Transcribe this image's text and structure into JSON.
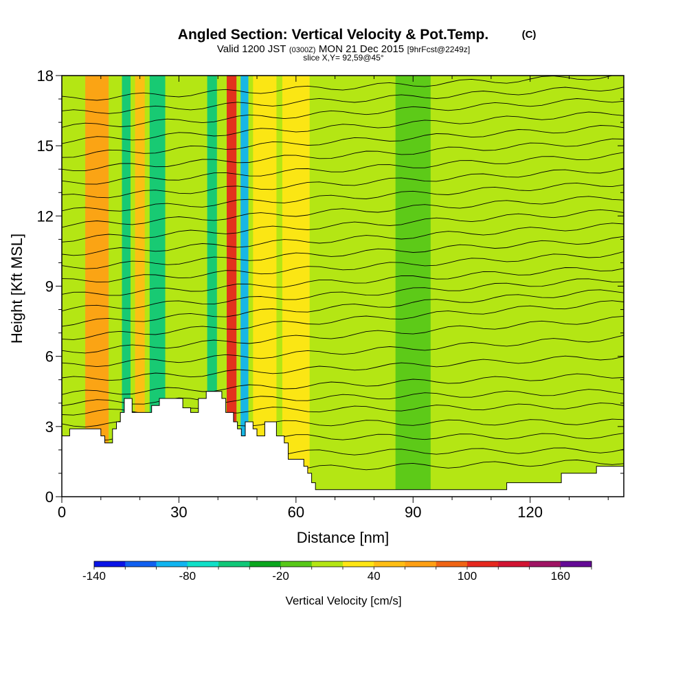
{
  "chart_data": {
    "type": "heatmap",
    "title": "Angled Section: Vertical Velocity & Pot.Temp.",
    "title_unit": "(C)",
    "subtitle": {
      "valid": "Valid 1200 JST",
      "zulu": "(0300Z)",
      "date": "MON 21 Dec 2015",
      "forecast": "[9hrFcst@2249z]"
    },
    "slice": "slice X,Y= 92,59@45°",
    "xlabel": "Distance [nm]",
    "ylabel": "Height [Kft MSL]",
    "xlim": [
      0,
      144
    ],
    "ylim": [
      0,
      18
    ],
    "x_ticks": [
      0,
      30,
      60,
      90,
      120
    ],
    "y_ticks": [
      0,
      3,
      6,
      9,
      12,
      15,
      18
    ],
    "x_tick_labels": [
      "0",
      "30",
      "60",
      "90",
      "120"
    ],
    "y_tick_labels": [
      "0",
      "3",
      "6",
      "9",
      "12",
      "15",
      "18"
    ],
    "colorbar": {
      "label": "Vertical Velocity [cm/s]",
      "min": -140,
      "max": 180,
      "step": 20,
      "tick_values": [
        -140,
        -80,
        -20,
        40,
        100,
        160
      ],
      "tick_labels": [
        "-140",
        "-80",
        "-20",
        "40",
        "100",
        "160"
      ],
      "colors": [
        "#0a14e6",
        "#1060f0",
        "#10b4f0",
        "#10e0c8",
        "#10c878",
        "#0aa61e",
        "#58c818",
        "#b4e614",
        "#ffe614",
        "#ffbe14",
        "#ffa014",
        "#f06414",
        "#e6281e",
        "#d21432",
        "#a01464",
        "#640a96"
      ]
    },
    "velocity_bands": [
      {
        "x_center": 9,
        "width": 6,
        "value": 70
      },
      {
        "x_center": 16.5,
        "width": 2.2,
        "value": -60
      },
      {
        "x_center": 20,
        "width": 2.5,
        "value": 40
      },
      {
        "x_center": 24.5,
        "width": 4,
        "value": -55
      },
      {
        "x_center": 38.5,
        "width": 2.5,
        "value": -45
      },
      {
        "x_center": 43.5,
        "width": 2.5,
        "value": 100
      },
      {
        "x_center": 46.8,
        "width": 2,
        "value": -100
      },
      {
        "x_center": 52,
        "width": 6,
        "value": 25
      },
      {
        "x_center": 60,
        "width": 7,
        "value": 35
      },
      {
        "x_center": 90,
        "width": 9,
        "value": -20
      }
    ],
    "terrain": {
      "x": [
        0,
        2,
        2,
        10,
        10,
        11,
        11,
        13,
        13,
        14,
        14,
        15,
        15,
        16,
        16,
        18,
        18,
        20,
        20,
        23,
        23,
        25,
        25,
        31,
        31,
        33,
        33,
        35,
        35,
        37,
        37,
        41,
        41,
        42,
        42,
        44,
        44,
        45,
        45,
        46,
        46,
        47,
        47,
        49,
        49,
        50,
        50,
        52,
        52,
        55,
        55,
        57,
        57,
        58,
        58,
        60,
        60,
        62,
        62,
        63,
        63,
        64,
        64,
        65,
        65,
        67,
        67,
        70,
        70,
        74,
        74,
        114,
        114,
        128,
        128,
        137,
        137,
        144
      ],
      "y": [
        2.6,
        2.6,
        2.9,
        2.9,
        2.6,
        2.6,
        2.3,
        2.3,
        2.9,
        2.9,
        3.2,
        3.2,
        3.6,
        3.6,
        4.2,
        4.2,
        3.6,
        3.6,
        3.6,
        3.6,
        3.9,
        3.9,
        4.2,
        4.2,
        3.8,
        3.8,
        3.6,
        3.6,
        4.2,
        4.2,
        4.5,
        4.5,
        4.2,
        4.2,
        3.6,
        3.6,
        3.2,
        3.2,
        2.9,
        2.9,
        2.6,
        2.6,
        3.2,
        3.2,
        2.9,
        2.9,
        2.6,
        2.6,
        3.2,
        3.2,
        2.6,
        2.6,
        2.3,
        2.3,
        1.6,
        1.6,
        1.6,
        1.6,
        1.3,
        1.3,
        1.0,
        1.0,
        0.6,
        0.6,
        0.3,
        0.3,
        0.3,
        0.3,
        0.3,
        0.3,
        0.3,
        0.3,
        0.6,
        0.6,
        1.0,
        1.0,
        1.3,
        1.3
      ]
    },
    "isentropes": [
      {
        "y_start": 1.0,
        "y_end": 1.5
      },
      {
        "y_start": 1.8,
        "y_end": 2.0
      },
      {
        "y_start": 2.5,
        "y_end": 2.6
      },
      {
        "y_start": 3.1,
        "y_end": 3.2
      },
      {
        "y_start": 3.6,
        "y_end": 3.9
      },
      {
        "y_start": 4.0,
        "y_end": 4.5
      },
      {
        "y_start": 4.4,
        "y_end": 5.2
      },
      {
        "y_start": 5.0,
        "y_end": 6.0
      },
      {
        "y_start": 5.6,
        "y_end": 6.8
      },
      {
        "y_start": 6.2,
        "y_end": 7.6
      },
      {
        "y_start": 6.8,
        "y_end": 8.3
      },
      {
        "y_start": 7.4,
        "y_end": 8.8
      },
      {
        "y_start": 8.0,
        "y_end": 9.3
      },
      {
        "y_start": 8.6,
        "y_end": 9.8
      },
      {
        "y_start": 9.2,
        "y_end": 10.4
      },
      {
        "y_start": 9.8,
        "y_end": 11.0
      },
      {
        "y_start": 10.4,
        "y_end": 11.6
      },
      {
        "y_start": 11.0,
        "y_end": 12.2
      },
      {
        "y_start": 11.6,
        "y_end": 12.8
      },
      {
        "y_start": 12.2,
        "y_end": 13.4
      },
      {
        "y_start": 12.8,
        "y_end": 14.0
      },
      {
        "y_start": 13.4,
        "y_end": 14.6
      },
      {
        "y_start": 14.0,
        "y_end": 15.2
      },
      {
        "y_start": 14.6,
        "y_end": 15.8
      },
      {
        "y_start": 15.2,
        "y_end": 16.4
      },
      {
        "y_start": 15.8,
        "y_end": 17.0
      },
      {
        "y_start": 16.4,
        "y_end": 17.5
      },
      {
        "y_start": 17.0,
        "y_end": 18.0
      }
    ]
  }
}
